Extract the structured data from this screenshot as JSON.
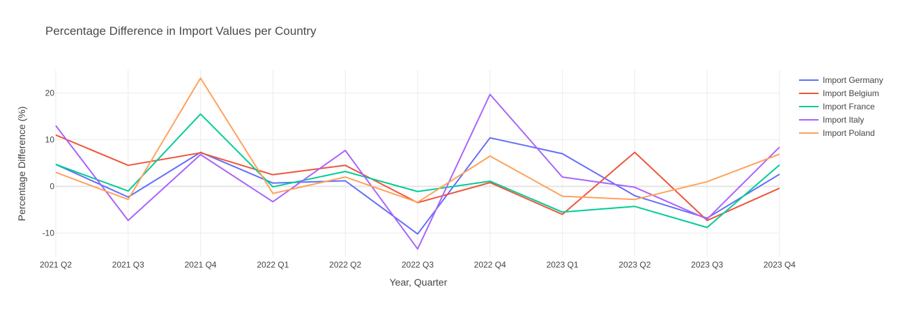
{
  "chart_data": {
    "type": "line",
    "title": "Percentage Difference in Import Values per Country",
    "xlabel": "Year, Quarter",
    "ylabel": "Percentage Difference (%)",
    "categories": [
      "2021 Q2",
      "2021 Q3",
      "2021 Q4",
      "2022 Q1",
      "2022 Q2",
      "2022 Q3",
      "2022 Q4",
      "2023 Q1",
      "2023 Q2",
      "2023 Q3",
      "2023 Q4"
    ],
    "ylim": [
      -15,
      25
    ],
    "yticks": [
      -10,
      0,
      10,
      20
    ],
    "grid": true,
    "legend_position": "top-right",
    "series": [
      {
        "name": "Import Germany",
        "color": "#636efa",
        "values": [
          4.7,
          -2.3,
          7.3,
          0.7,
          1.2,
          -10.2,
          10.4,
          7.0,
          -2.0,
          -6.8,
          2.6
        ]
      },
      {
        "name": "Import Belgium",
        "color": "#ef553b",
        "values": [
          11.0,
          4.5,
          7.2,
          2.5,
          4.5,
          -3.5,
          0.8,
          -6.0,
          7.3,
          -7.3,
          -0.4
        ]
      },
      {
        "name": "Import France",
        "color": "#00cc96",
        "values": [
          4.7,
          -1.0,
          15.5,
          -0.1,
          3.2,
          -1.1,
          1.1,
          -5.5,
          -4.3,
          -8.8,
          4.6
        ]
      },
      {
        "name": "Import Italy",
        "color": "#ab63fa",
        "values": [
          13.0,
          -7.3,
          6.8,
          -3.3,
          7.7,
          -13.4,
          19.7,
          2.0,
          -0.2,
          -7.0,
          8.4
        ]
      },
      {
        "name": "Import Poland",
        "color": "#ffa15a",
        "values": [
          3.0,
          -2.8,
          23.2,
          -1.5,
          2.0,
          -3.4,
          6.5,
          -2.1,
          -2.8,
          1.0,
          6.9
        ]
      }
    ]
  }
}
